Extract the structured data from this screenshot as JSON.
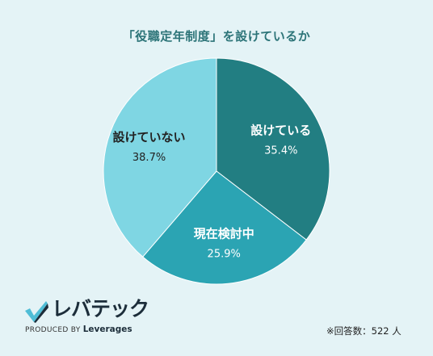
{
  "chart_data": {
    "type": "pie",
    "title": "「役職定年制度」を設けているか",
    "start_angle_deg": 0,
    "direction": "clockwise",
    "slices": [
      {
        "label": "設けている",
        "value": 35.4,
        "value_label": "35.4%",
        "color": "#227e82",
        "text_color": "#ffffff"
      },
      {
        "label": "現在検討中",
        "value": 25.9,
        "value_label": "25.9%",
        "color": "#2ba4b3",
        "text_color": "#ffffff"
      },
      {
        "label": "設けていない",
        "value": 38.7,
        "value_label": "38.7%",
        "color": "#7fd6e3",
        "text_color": "#222222"
      }
    ]
  },
  "footer": {
    "logo_text": "レバテック",
    "logo_sub_prefix": "PRODUCED BY",
    "logo_sub_brand": "Leverages",
    "note": "※回答数：522 人"
  },
  "colors": {
    "background": "#e4f3f6",
    "title": "#2c7478",
    "logo_mark_light": "#4fbdd6",
    "logo_mark_dark": "#1c2d3a"
  }
}
